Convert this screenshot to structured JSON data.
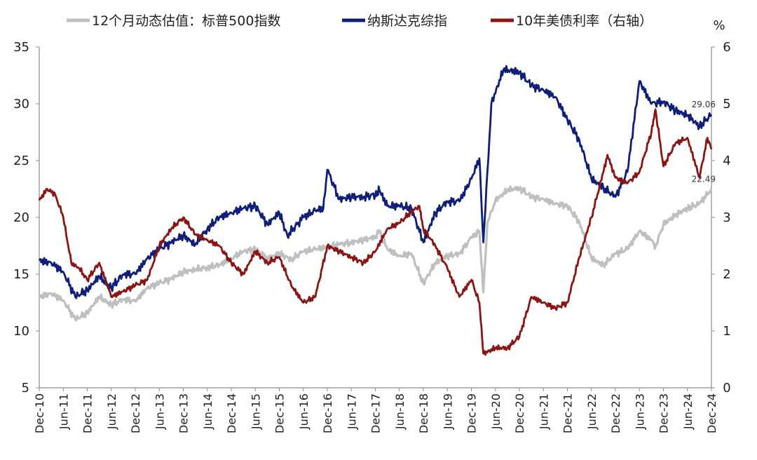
{
  "chart_data": {
    "type": "line",
    "legend_position": "top",
    "grid": false,
    "y_axis_left": {
      "ylim": [
        5,
        35
      ],
      "ticks": [
        5,
        10,
        15,
        20,
        25,
        30,
        35
      ]
    },
    "y_axis_right": {
      "unit": "%",
      "ylim": [
        0,
        6
      ],
      "ticks": [
        0,
        1,
        2,
        3,
        4,
        5,
        6
      ]
    },
    "x_ticks": [
      "Dec-10",
      "Jun-11",
      "Dec-11",
      "Jun-12",
      "Dec-12",
      "Jun-13",
      "Dec-13",
      "Jun-14",
      "Dec-14",
      "Jun-15",
      "Dec-15",
      "Jun-16",
      "Dec-16",
      "Jun-17",
      "Dec-17",
      "Jun-18",
      "Dec-18",
      "Jun-19",
      "Dec-19",
      "Jun-20",
      "Dec-20",
      "Jun-21",
      "Dec-21",
      "Jun-22",
      "Dec-22",
      "Jun-23",
      "Dec-23",
      "Jun-24",
      "Dec-24"
    ],
    "series": [
      {
        "name": "12个月动态估值：标普500指数",
        "axis": "left",
        "color": "#bfbfbf",
        "end_label": "22.49",
        "x": [
          "2010-12",
          "2011-03",
          "2011-06",
          "2011-09",
          "2011-12",
          "2012-03",
          "2012-06",
          "2012-09",
          "2012-12",
          "2013-03",
          "2013-06",
          "2013-09",
          "2013-12",
          "2014-03",
          "2014-06",
          "2014-09",
          "2014-12",
          "2015-03",
          "2015-06",
          "2015-09",
          "2015-12",
          "2016-03",
          "2016-06",
          "2016-09",
          "2016-12",
          "2017-03",
          "2017-06",
          "2017-09",
          "2017-12",
          "2018-01",
          "2018-03",
          "2018-06",
          "2018-09",
          "2018-12",
          "2019-03",
          "2019-06",
          "2019-09",
          "2019-12",
          "2020-02",
          "2020-03",
          "2020-04",
          "2020-06",
          "2020-09",
          "2020-12",
          "2021-03",
          "2021-06",
          "2021-09",
          "2021-12",
          "2022-03",
          "2022-06",
          "2022-09",
          "2022-12",
          "2023-03",
          "2023-06",
          "2023-09",
          "2023-10",
          "2023-12",
          "2024-03",
          "2024-06",
          "2024-09",
          "2024-12"
        ],
        "y": [
          13.0,
          13.3,
          12.7,
          11.0,
          11.6,
          13.0,
          12.3,
          12.8,
          12.6,
          13.8,
          14.2,
          14.6,
          15.2,
          15.4,
          15.6,
          15.8,
          16.4,
          17.0,
          17.2,
          16.4,
          16.8,
          16.3,
          17.0,
          17.2,
          17.4,
          17.6,
          17.8,
          18.0,
          18.3,
          18.8,
          17.2,
          16.6,
          16.8,
          14.2,
          16.0,
          16.6,
          16.8,
          18.2,
          18.8,
          13.4,
          19.5,
          21.5,
          22.4,
          22.6,
          21.8,
          21.6,
          21.2,
          21.0,
          19.6,
          16.4,
          15.8,
          16.8,
          17.2,
          18.8,
          18.0,
          17.4,
          19.4,
          20.2,
          20.8,
          21.2,
          22.49
        ]
      },
      {
        "name": "纳斯达克综指",
        "axis": "left",
        "color": "#0f1e7a",
        "end_label": "29.06",
        "x": [
          "2010-12",
          "2011-03",
          "2011-06",
          "2011-09",
          "2011-12",
          "2012-03",
          "2012-06",
          "2012-09",
          "2012-12",
          "2013-03",
          "2013-06",
          "2013-09",
          "2013-12",
          "2014-03",
          "2014-06",
          "2014-09",
          "2014-12",
          "2015-03",
          "2015-06",
          "2015-09",
          "2015-12",
          "2016-02",
          "2016-06",
          "2016-09",
          "2016-11",
          "2016-12",
          "2017-03",
          "2017-06",
          "2017-09",
          "2017-12",
          "2018-01",
          "2018-03",
          "2018-06",
          "2018-09",
          "2018-12",
          "2019-03",
          "2019-06",
          "2019-09",
          "2019-12",
          "2020-02",
          "2020-03",
          "2020-05",
          "2020-08",
          "2020-12",
          "2021-03",
          "2021-06",
          "2021-09",
          "2021-12",
          "2022-03",
          "2022-06",
          "2022-09",
          "2022-12",
          "2023-03",
          "2023-06",
          "2023-09",
          "2023-12",
          "2024-03",
          "2024-06",
          "2024-09",
          "2024-12"
        ],
        "y": [
          16.2,
          16.0,
          15.2,
          13.0,
          13.6,
          14.8,
          13.8,
          15.0,
          15.0,
          16.4,
          17.2,
          17.8,
          18.4,
          17.6,
          19.0,
          20.0,
          20.4,
          20.8,
          21.0,
          19.4,
          20.4,
          18.4,
          20.0,
          20.6,
          20.8,
          24.2,
          21.6,
          21.8,
          21.8,
          22.0,
          22.4,
          21.0,
          21.0,
          20.8,
          17.8,
          20.4,
          21.4,
          21.4,
          23.4,
          25.2,
          17.8,
          30.0,
          33.0,
          32.8,
          31.6,
          31.2,
          30.6,
          28.6,
          26.8,
          23.4,
          22.6,
          21.8,
          24.0,
          32.0,
          30.0,
          30.2,
          29.4,
          29.0,
          28.0,
          29.06
        ]
      },
      {
        "name": "10年美债利率（右轴）",
        "axis": "right",
        "color": "#8b1414",
        "x": [
          "2010-12",
          "2011-02",
          "2011-04",
          "2011-06",
          "2011-08",
          "2011-10",
          "2011-12",
          "2012-03",
          "2012-06",
          "2012-09",
          "2012-12",
          "2013-03",
          "2013-06",
          "2013-09",
          "2013-12",
          "2014-03",
          "2014-06",
          "2014-09",
          "2014-12",
          "2015-03",
          "2015-06",
          "2015-09",
          "2015-12",
          "2016-03",
          "2016-06",
          "2016-09",
          "2016-12",
          "2017-03",
          "2017-06",
          "2017-09",
          "2017-12",
          "2018-03",
          "2018-06",
          "2018-09",
          "2018-11",
          "2018-12",
          "2019-03",
          "2019-06",
          "2019-09",
          "2019-12",
          "2020-02",
          "2020-03",
          "2020-06",
          "2020-09",
          "2020-12",
          "2021-03",
          "2021-06",
          "2021-09",
          "2021-12",
          "2022-03",
          "2022-06",
          "2022-09",
          "2022-10",
          "2022-12",
          "2023-03",
          "2023-06",
          "2023-09",
          "2023-10",
          "2023-12",
          "2024-03",
          "2024-06",
          "2024-09",
          "2024-11",
          "2024-12"
        ],
        "y": [
          3.3,
          3.5,
          3.4,
          3.0,
          2.2,
          2.1,
          1.9,
          2.2,
          1.6,
          1.7,
          1.8,
          1.9,
          2.5,
          2.8,
          3.0,
          2.7,
          2.6,
          2.5,
          2.2,
          2.0,
          2.4,
          2.2,
          2.3,
          1.8,
          1.5,
          1.6,
          2.5,
          2.4,
          2.3,
          2.2,
          2.4,
          2.8,
          2.9,
          3.1,
          3.2,
          2.8,
          2.5,
          2.1,
          1.6,
          1.9,
          1.5,
          0.6,
          0.7,
          0.7,
          0.9,
          1.6,
          1.5,
          1.4,
          1.5,
          2.3,
          3.0,
          3.8,
          4.1,
          3.7,
          3.6,
          3.8,
          4.5,
          4.9,
          3.9,
          4.3,
          4.4,
          3.7,
          4.4,
          4.2
        ]
      }
    ]
  }
}
